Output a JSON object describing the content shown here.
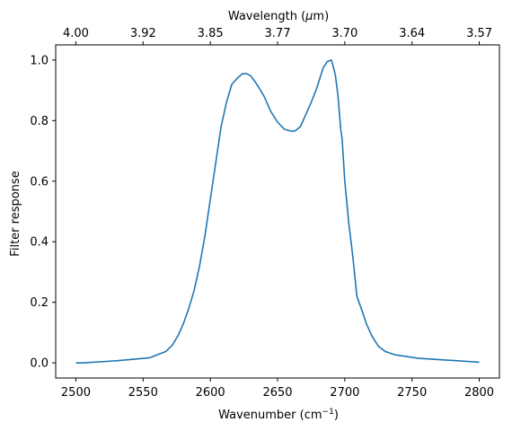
{
  "chart_data": {
    "type": "line",
    "xlabel": "Wavenumber (cm",
    "xlabel_sup": "−1",
    "xlabel_end": ")",
    "ylabel": "Filter response",
    "top_xlabel": "Wavelength (",
    "top_xlabel_mu": "μ",
    "top_xlabel_end": "m)",
    "xlim": [
      2485,
      2815
    ],
    "ylim": [
      -0.05,
      1.05
    ],
    "x_ticks": [
      2500,
      2550,
      2600,
      2650,
      2700,
      2750,
      2800
    ],
    "x_tick_labels": [
      "2500",
      "2550",
      "2600",
      "2650",
      "2700",
      "2750",
      "2800"
    ],
    "y_ticks": [
      0.0,
      0.2,
      0.4,
      0.6,
      0.8,
      1.0
    ],
    "y_tick_labels": [
      "0.0",
      "0.2",
      "0.4",
      "0.6",
      "0.8",
      "1.0"
    ],
    "top_ticks_wavenumber": [
      2500,
      2550,
      2600,
      2650,
      2700,
      2750,
      2800
    ],
    "top_tick_labels": [
      "4.00",
      "3.92",
      "3.85",
      "3.77",
      "3.70",
      "3.64",
      "3.57"
    ],
    "grid": false,
    "series": [
      {
        "color": "#1f77b4",
        "x": [
          2500,
          2505,
          2530,
          2555,
          2567,
          2572,
          2576,
          2580,
          2584,
          2588,
          2592,
          2596,
          2600,
          2604,
          2608,
          2612,
          2616,
          2620,
          2624,
          2627,
          2630,
          2633,
          2636,
          2640,
          2645,
          2650,
          2655,
          2660,
          2663,
          2667,
          2671,
          2675,
          2679,
          2684,
          2687,
          2690,
          2691,
          2693,
          2695,
          2697,
          2698,
          2700,
          2703,
          2706,
          2709,
          2713,
          2716,
          2720,
          2725,
          2730,
          2737,
          2755,
          2780,
          2800
        ],
        "y": [
          0.0,
          0.0,
          0.007,
          0.017,
          0.038,
          0.06,
          0.09,
          0.13,
          0.18,
          0.24,
          0.32,
          0.42,
          0.54,
          0.66,
          0.78,
          0.86,
          0.92,
          0.94,
          0.955,
          0.955,
          0.948,
          0.93,
          0.91,
          0.88,
          0.83,
          0.795,
          0.772,
          0.765,
          0.766,
          0.78,
          0.82,
          0.86,
          0.905,
          0.975,
          0.995,
          1.0,
          0.985,
          0.95,
          0.88,
          0.77,
          0.74,
          0.6,
          0.46,
          0.35,
          0.22,
          0.17,
          0.13,
          0.09,
          0.055,
          0.038,
          0.027,
          0.015,
          0.008,
          0.002
        ]
      }
    ]
  }
}
